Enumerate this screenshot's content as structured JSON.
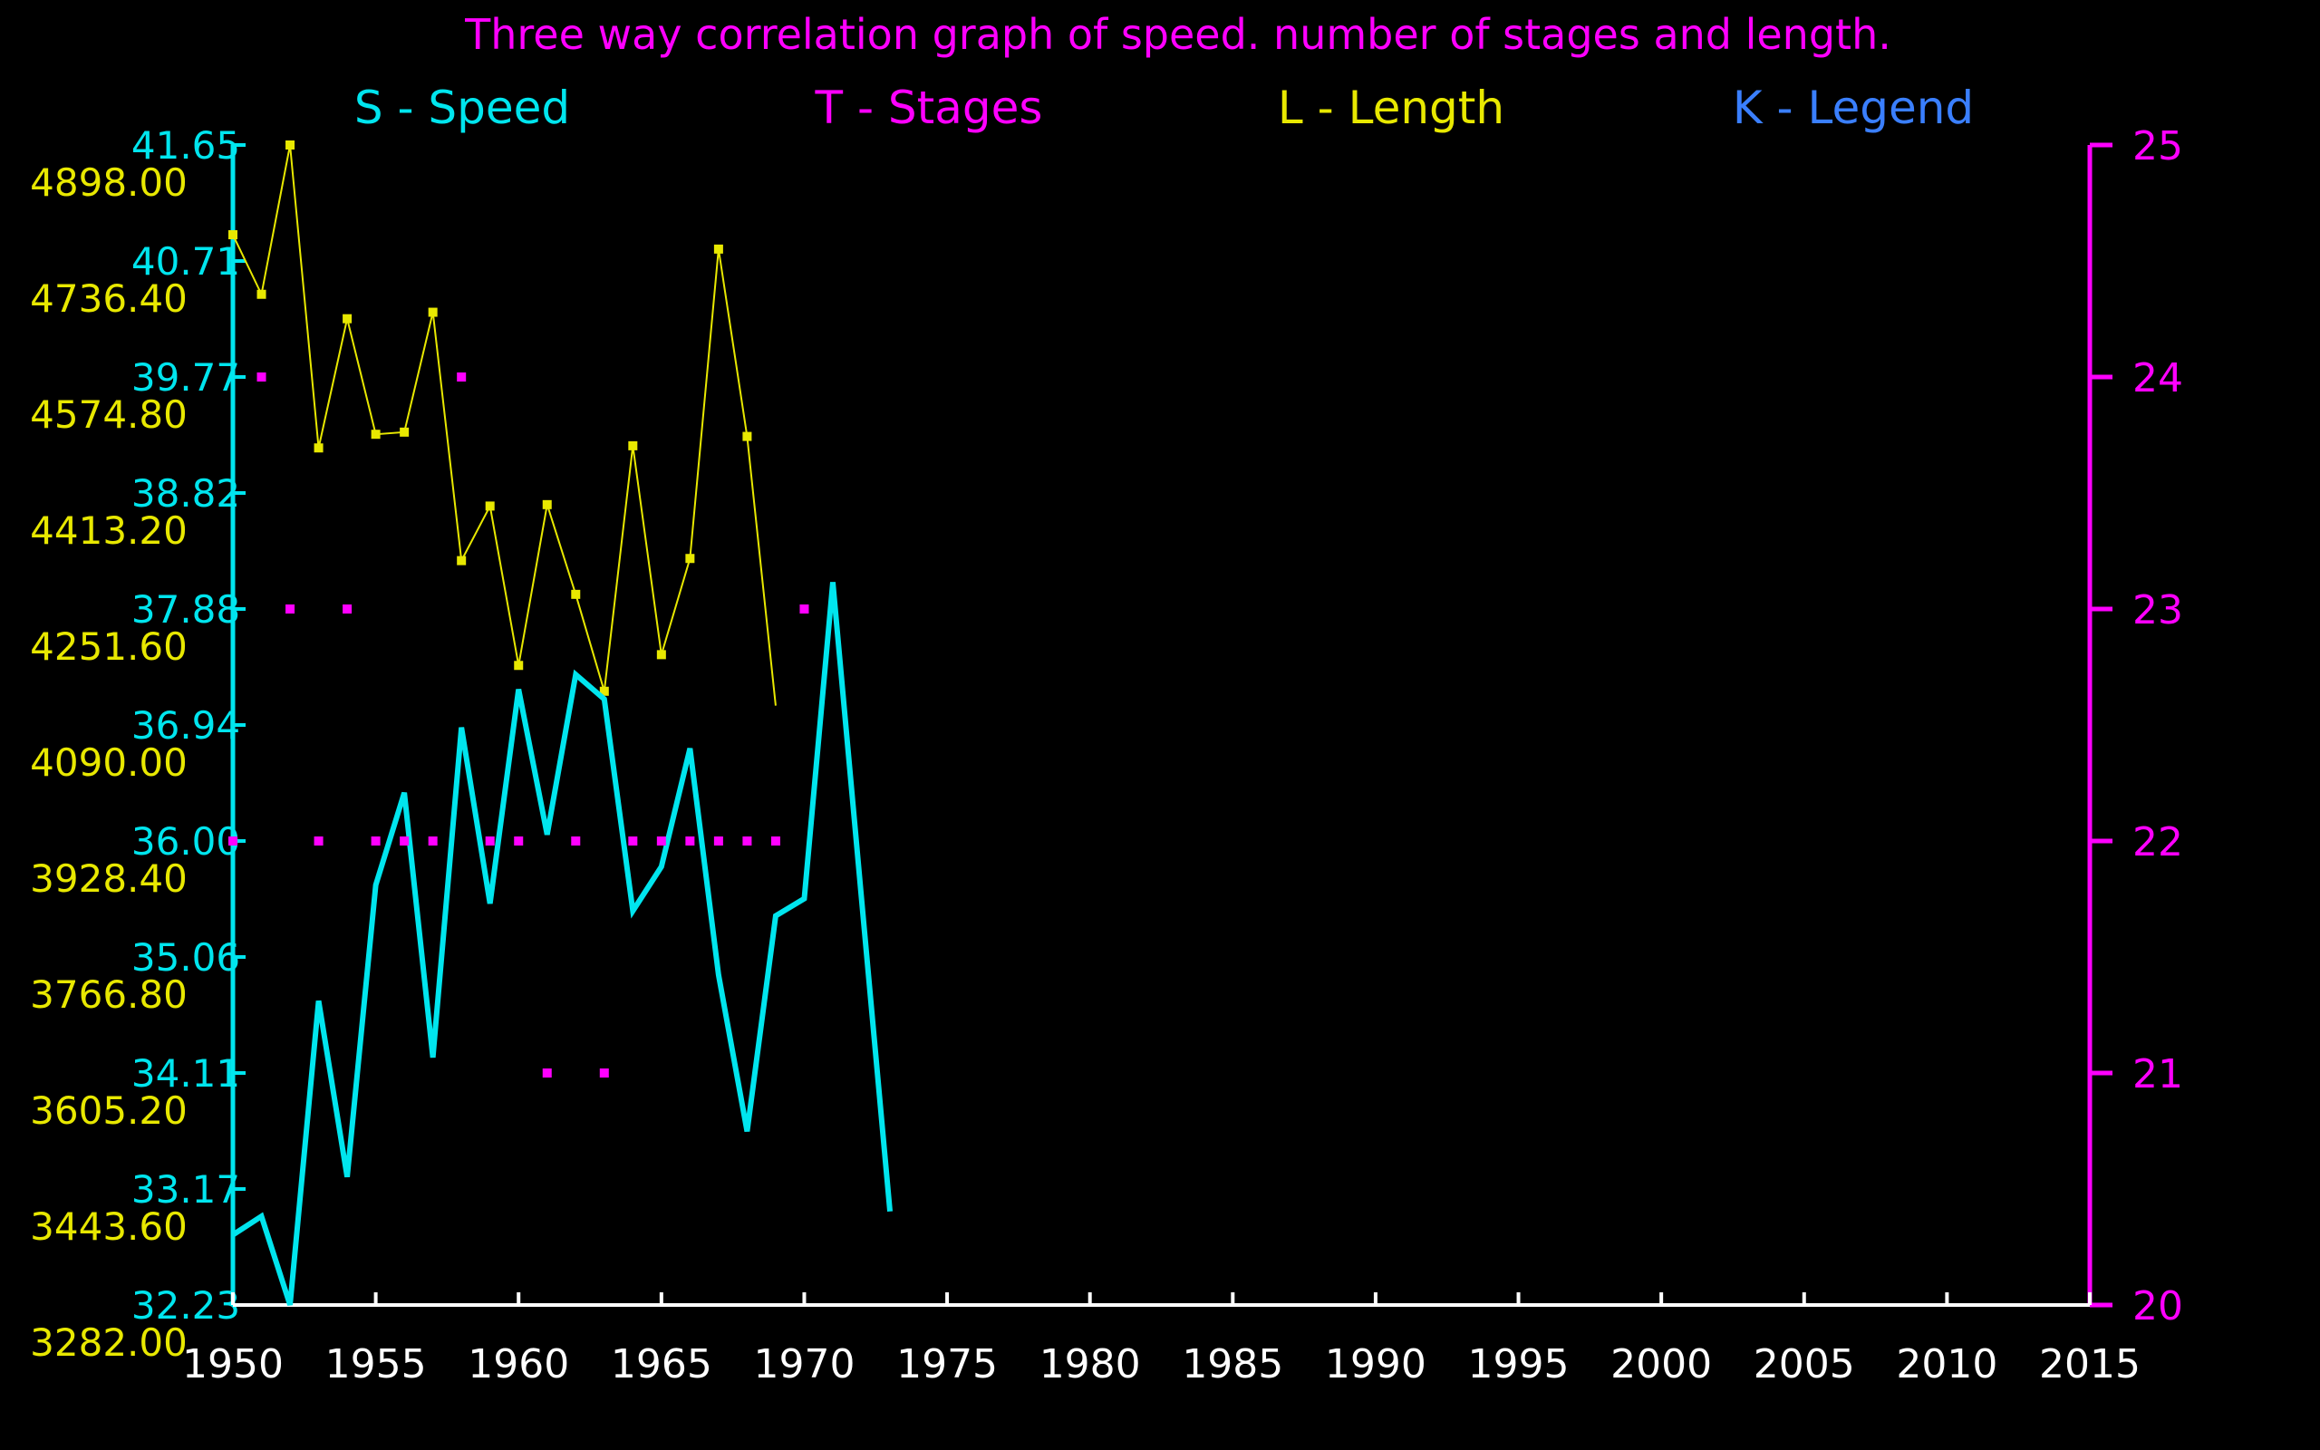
{
  "title": "Three way correlation graph of speed. number of stages and length.",
  "legend": [
    {
      "key": "S",
      "label": "S - Speed",
      "color": "#00e5ee"
    },
    {
      "key": "T",
      "label": "T - Stages",
      "color": "#ff00ff"
    },
    {
      "key": "L",
      "label": "L - Length",
      "color": "#e8e800"
    },
    {
      "key": "K",
      "label": "K - Legend",
      "color": "#3a7fff"
    }
  ],
  "colors": {
    "speed": "#00e5ee",
    "stages": "#ff00ff",
    "length": "#e8e800",
    "axis_x": "#ffffff",
    "background": "#000000"
  },
  "chart_data": {
    "type": "line",
    "xlim": [
      1950,
      2015
    ],
    "x_ticks": [
      "1950",
      "1955",
      "1960",
      "1965",
      "1970",
      "1975",
      "1980",
      "1985",
      "1990",
      "1995",
      "2000",
      "2005",
      "2010",
      "2015"
    ],
    "speed_axis": {
      "ylim": [
        32.23,
        41.65
      ],
      "tick_labels": [
        "32.23",
        "33.17",
        "34.11",
        "35.06",
        "36.00",
        "36.94",
        "37.88",
        "38.82",
        "39.77",
        "40.71",
        "41.65"
      ]
    },
    "length_axis": {
      "ylim": [
        3282.0,
        4898.0
      ],
      "tick_labels": [
        "3282.00",
        "3443.60",
        "3605.20",
        "3766.80",
        "3928.40",
        "4090.00",
        "4251.60",
        "4413.20",
        "4574.80",
        "4736.40",
        "4898.00"
      ]
    },
    "stages_axis": {
      "ylim": [
        20,
        25
      ],
      "tick_labels": [
        "20",
        "21",
        "22",
        "23",
        "24",
        "25"
      ]
    },
    "series": [
      {
        "name": "Speed",
        "axis": "speed",
        "points": [
          [
            1950,
            32.8
          ],
          [
            1951,
            32.95
          ],
          [
            1952,
            32.23
          ],
          [
            1953,
            34.7
          ],
          [
            1954,
            33.27
          ],
          [
            1955,
            35.64
          ],
          [
            1956,
            36.39
          ],
          [
            1957,
            34.24
          ],
          [
            1958,
            36.92
          ],
          [
            1959,
            35.49
          ],
          [
            1960,
            37.23
          ],
          [
            1961,
            36.05
          ],
          [
            1962,
            37.35
          ],
          [
            1963,
            37.15
          ],
          [
            1964,
            35.43
          ],
          [
            1965,
            35.79
          ],
          [
            1966,
            36.75
          ],
          [
            1967,
            34.91
          ],
          [
            1968,
            33.64
          ],
          [
            1969,
            35.39
          ],
          [
            1970,
            35.53
          ],
          [
            1971,
            38.1
          ],
          [
            1972,
            35.54
          ],
          [
            1973,
            32.99
          ]
        ]
      },
      {
        "name": "Length",
        "axis": "length",
        "points": [
          [
            1950,
            4773
          ],
          [
            1951,
            4690
          ],
          [
            1952,
            4898
          ],
          [
            1953,
            4476
          ],
          [
            1954,
            4656
          ],
          [
            1955,
            4495
          ],
          [
            1956,
            4498
          ],
          [
            1957,
            4665
          ],
          [
            1958,
            4319
          ],
          [
            1959,
            4395
          ],
          [
            1960,
            4173
          ],
          [
            1961,
            4397
          ],
          [
            1962,
            4272
          ],
          [
            1963,
            4137
          ],
          [
            1964,
            4479
          ],
          [
            1965,
            4188
          ],
          [
            1966,
            4322
          ],
          [
            1967,
            4753
          ],
          [
            1968,
            4492
          ],
          [
            1969,
            4117
          ]
        ]
      },
      {
        "name": "Stages",
        "axis": "stages",
        "points": [
          [
            1950,
            22
          ],
          [
            1951,
            24
          ],
          [
            1952,
            23
          ],
          [
            1953,
            22
          ],
          [
            1954,
            23
          ],
          [
            1955,
            22
          ],
          [
            1956,
            22
          ],
          [
            1957,
            22
          ],
          [
            1958,
            24
          ],
          [
            1959,
            22
          ],
          [
            1960,
            22
          ],
          [
            1961,
            21
          ],
          [
            1962,
            22
          ],
          [
            1963,
            21
          ],
          [
            1964,
            22
          ],
          [
            1965,
            22
          ],
          [
            1966,
            22
          ],
          [
            1967,
            22
          ],
          [
            1968,
            22
          ],
          [
            1969,
            22
          ],
          [
            1970,
            23
          ]
        ]
      }
    ]
  }
}
